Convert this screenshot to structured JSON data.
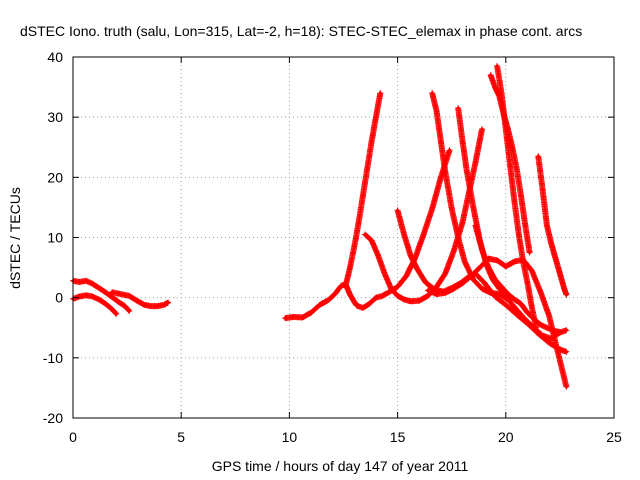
{
  "chart_data": {
    "type": "scatter",
    "title": "dSTEC Iono. truth (salu, Lon=315, Lat=-2, h=18): STEC-STEC_elemax in phase cont. arcs",
    "xlabel": "GPS time / hours of day 147 of year 2011",
    "ylabel": "dSTEC  / TECUs",
    "xlim": [
      0,
      25
    ],
    "ylim": [
      -20,
      40
    ],
    "xticks": [
      0,
      5,
      10,
      15,
      20,
      25
    ],
    "yticks": [
      -20,
      -10,
      0,
      10,
      20,
      30,
      40
    ],
    "grid": true,
    "marker": "plus",
    "color": "#ff0000",
    "series": [
      {
        "x": [
          0.0,
          0.3,
          0.6,
          0.9,
          1.2,
          1.5,
          1.8,
          2.1,
          2.4,
          2.6
        ],
        "y": [
          2.8,
          2.6,
          2.8,
          2.3,
          1.6,
          0.9,
          0.1,
          -0.7,
          -1.4,
          -2.2
        ]
      },
      {
        "x": [
          0.0,
          0.3,
          0.6,
          0.9,
          1.2,
          1.5,
          1.8,
          2.0
        ],
        "y": [
          -0.2,
          0.2,
          0.4,
          0.2,
          -0.3,
          -1.0,
          -1.9,
          -2.7
        ]
      },
      {
        "x": [
          1.8,
          2.2,
          2.6,
          3.0,
          3.3,
          3.6,
          3.9,
          4.2,
          4.4
        ],
        "y": [
          0.9,
          0.6,
          0.3,
          -0.6,
          -1.2,
          -1.4,
          -1.4,
          -1.2,
          -0.8
        ]
      },
      {
        "x": [
          9.8,
          10.2,
          10.6,
          11.0,
          11.4,
          11.8,
          12.1,
          12.4,
          12.6,
          12.8,
          13.1,
          13.4,
          13.7,
          14.0,
          14.3,
          14.6,
          15.0,
          15.4,
          15.8,
          16.2,
          16.6,
          17.0,
          17.4
        ],
        "y": [
          -3.4,
          -3.2,
          -3.3,
          -2.5,
          -1.2,
          -0.4,
          0.6,
          2.0,
          2.2,
          0.5,
          -1.3,
          -1.7,
          -1.0,
          0.0,
          0.3,
          0.9,
          1.8,
          3.6,
          6.5,
          10.5,
          14.8,
          20.0,
          24.5
        ]
      },
      {
        "x": [
          12.6,
          12.8,
          13.0,
          13.2,
          13.4,
          13.6,
          13.8,
          14.0,
          14.2
        ],
        "y": [
          2.0,
          5.0,
          8.5,
          12.5,
          17.0,
          21.5,
          26.0,
          30.0,
          34.0
        ]
      },
      {
        "x": [
          13.5,
          13.8,
          14.1,
          14.4,
          14.7,
          15.0,
          15.3,
          15.6,
          16.0,
          16.4,
          16.8,
          17.2,
          17.6,
          18.0,
          18.3,
          18.6,
          18.9
        ],
        "y": [
          10.5,
          9.5,
          7.0,
          4.0,
          1.5,
          0.3,
          -0.3,
          -0.6,
          -0.5,
          0.3,
          1.8,
          4.0,
          7.8,
          12.5,
          17.5,
          22.5,
          28.0
        ]
      },
      {
        "x": [
          15.0,
          15.3,
          15.6,
          15.9,
          16.3,
          16.7,
          17.1,
          17.5,
          17.9,
          18.3,
          18.6,
          19.0,
          19.5,
          20.0,
          20.5,
          21.0,
          21.5,
          22.0,
          22.5,
          22.8
        ],
        "y": [
          14.5,
          10.5,
          7.0,
          4.8,
          2.5,
          1.4,
          1.0,
          1.6,
          2.4,
          3.5,
          4.0,
          2.5,
          0.2,
          -1.2,
          -2.8,
          -4.3,
          -6.0,
          -7.5,
          -8.6,
          -9.0
        ]
      },
      {
        "x": [
          16.6,
          16.8,
          17.0,
          17.2,
          17.5,
          17.8,
          18.1,
          18.5,
          18.9,
          19.3,
          19.7,
          20.1,
          20.5,
          20.9,
          21.3,
          21.7,
          22.1,
          22.5,
          22.8
        ],
        "y": [
          34.0,
          31.0,
          26.0,
          21.0,
          14.8,
          10.0,
          6.0,
          3.0,
          1.5,
          0.8,
          0.6,
          -0.3,
          -2.0,
          -3.6,
          -5.0,
          -6.3,
          -6.8,
          -5.8,
          -5.4
        ]
      },
      {
        "x": [
          16.4,
          16.8,
          17.2,
          17.6,
          18.0,
          18.4,
          18.8,
          19.2,
          19.6,
          20.0,
          20.4,
          20.8,
          21.2,
          21.6,
          22.0,
          22.4,
          22.8
        ],
        "y": [
          1.2,
          0.6,
          0.8,
          1.5,
          2.4,
          3.6,
          5.0,
          6.5,
          6.2,
          5.2,
          6.0,
          6.3,
          4.5,
          1.0,
          -3.0,
          -9.0,
          -14.8
        ]
      },
      {
        "x": [
          17.8,
          18.0,
          18.2,
          18.5,
          18.8,
          19.1,
          19.4,
          19.7,
          20.0,
          20.3
        ],
        "y": [
          31.5,
          26.0,
          21.0,
          15.0,
          9.5,
          5.5,
          3.0,
          1.5,
          0.5,
          -0.1
        ]
      },
      {
        "x": [
          18.6,
          18.9,
          19.2,
          19.5,
          19.8,
          20.1,
          20.4,
          20.7,
          21.0,
          21.3,
          21.6,
          21.9,
          22.2,
          22.5
        ],
        "y": [
          12.0,
          8.0,
          5.0,
          3.0,
          1.8,
          0.6,
          -0.3,
          -1.0,
          -2.5,
          -3.5,
          -4.5,
          -5.0,
          -5.5,
          -5.7
        ]
      },
      {
        "x": [
          19.3,
          19.5,
          19.7,
          19.9,
          20.1,
          20.3,
          20.5,
          20.7,
          20.9,
          21.1
        ],
        "y": [
          37.0,
          35.0,
          33.5,
          30.5,
          28.0,
          25.0,
          21.5,
          17.0,
          12.0,
          7.5
        ]
      },
      {
        "x": [
          19.6,
          19.8,
          20.0,
          20.2,
          20.4,
          20.6,
          20.8,
          21.0,
          21.2,
          21.4
        ],
        "y": [
          38.5,
          34.0,
          28.0,
          22.0,
          16.0,
          10.5,
          6.0,
          2.5,
          -1.5,
          -5.0
        ]
      },
      {
        "x": [
          21.5,
          21.7,
          21.9,
          22.1,
          22.3,
          22.5,
          22.7,
          22.8
        ],
        "y": [
          23.5,
          18.0,
          12.0,
          9.0,
          6.5,
          4.0,
          1.5,
          0.5
        ]
      }
    ]
  }
}
